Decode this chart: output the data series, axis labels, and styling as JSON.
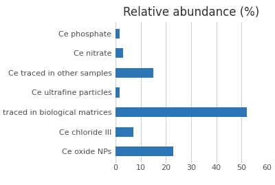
{
  "title": "Relative abundance (%)",
  "categories": [
    "Ce oxide NPs",
    "Ce chloride III",
    "Ce traced in biological matrices",
    "Ce ultrafine particles",
    "Ce traced in other samples",
    "Ce nitrate",
    "Ce phosphate"
  ],
  "values": [
    23,
    7,
    52,
    1.5,
    15,
    3,
    1.5
  ],
  "bar_color": "#2E75B6",
  "xlim": [
    0,
    60
  ],
  "xticks": [
    0,
    10,
    20,
    30,
    40,
    50,
    60
  ],
  "title_fontsize": 12,
  "tick_fontsize": 8,
  "bar_height": 0.5,
  "background_color": "#ffffff",
  "grid_color": "#d0d0d0"
}
